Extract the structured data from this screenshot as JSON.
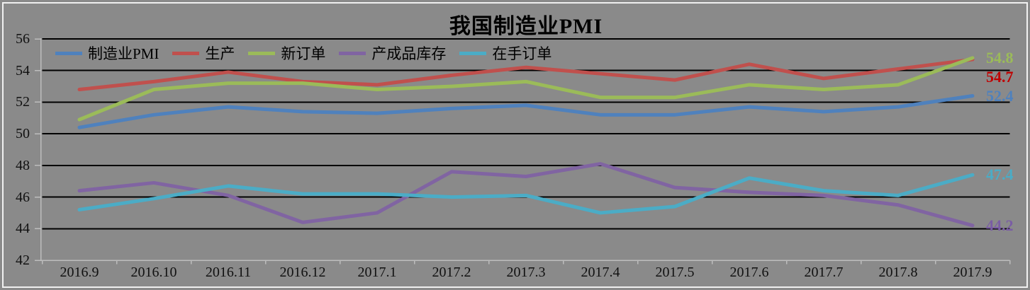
{
  "title": "我国制造业PMI",
  "chart_data": {
    "type": "line",
    "title": "我国制造业PMI",
    "legend_position": "top-left-horizontal",
    "grid": true,
    "background_color": "#8A8A8A",
    "gridline_color": "#000000",
    "axis_color": "#BDBDBD",
    "categories": [
      "2016.9",
      "2016.10",
      "2016.11",
      "2016.12",
      "2017.1",
      "2017.2",
      "2017.3",
      "2017.4",
      "2017.5",
      "2017.6",
      "2017.7",
      "2017.8",
      "2017.9"
    ],
    "y_axis": {
      "min": 42,
      "max": 56,
      "step": 2,
      "tick_labels": [
        "56",
        "54",
        "52",
        "50",
        "48",
        "46",
        "44",
        "42"
      ]
    },
    "series": [
      {
        "key": "pmi",
        "name": "制造业PMI",
        "color": "#4F81BD",
        "values": [
          50.4,
          51.2,
          51.7,
          51.4,
          51.3,
          51.6,
          51.8,
          51.2,
          51.2,
          51.7,
          51.4,
          51.7,
          52.4
        ],
        "end_label": "52.4",
        "end_label_color": "#4F81BD"
      },
      {
        "key": "production",
        "name": "生产",
        "color": "#C0504D",
        "values": [
          52.8,
          53.3,
          53.9,
          53.3,
          53.1,
          53.7,
          54.2,
          53.8,
          53.4,
          54.4,
          53.5,
          54.1,
          54.7
        ],
        "end_label": "54.7",
        "end_label_color": "#C00000"
      },
      {
        "key": "new-orders",
        "name": "新订单",
        "color": "#9BBB59",
        "values": [
          50.9,
          52.8,
          53.2,
          53.2,
          52.8,
          53.0,
          53.3,
          52.3,
          52.3,
          53.1,
          52.8,
          53.1,
          54.8
        ],
        "end_label": "54.8",
        "end_label_color": "#9BBB59"
      },
      {
        "key": "finished-goods-inventory",
        "name": "产成品库存",
        "color": "#8064A2",
        "values": [
          46.4,
          46.9,
          46.1,
          44.4,
          45.0,
          47.6,
          47.3,
          48.1,
          46.6,
          46.3,
          46.1,
          45.5,
          44.2
        ],
        "end_label": "44.2",
        "end_label_color": "#7A5CA5"
      },
      {
        "key": "backlog-orders",
        "name": "在手订单",
        "color": "#4BACC6",
        "values": [
          45.2,
          45.9,
          46.7,
          46.2,
          46.2,
          46.0,
          46.1,
          45.0,
          45.4,
          47.2,
          46.4,
          46.1,
          47.4
        ],
        "end_label": "47.4",
        "end_label_color": "#4BACC6"
      }
    ]
  }
}
